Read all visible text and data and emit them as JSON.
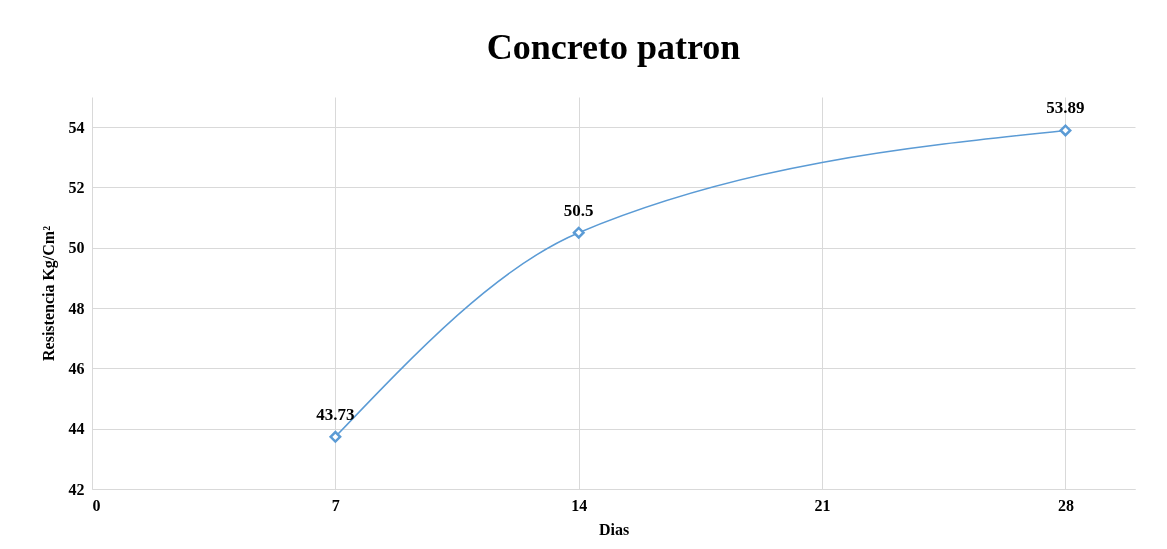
{
  "chart_data": {
    "type": "line",
    "title": "Concreto patron",
    "xlabel": "Dias",
    "ylabel": "Resistencia Kg/Cm²",
    "x": [
      7,
      14,
      28
    ],
    "series": [
      {
        "color": "#5b9bd5",
        "values": [
          43.73,
          50.5,
          53.89
        ]
      }
    ],
    "xlim": [
      0,
      30
    ],
    "xticks": [
      0,
      7,
      14,
      21,
      28
    ],
    "ylim": [
      42,
      55
    ],
    "yticks": [
      42,
      44,
      46,
      48,
      50,
      52,
      54
    ],
    "grid": true,
    "marker": "diamond",
    "data_labels": true
  }
}
